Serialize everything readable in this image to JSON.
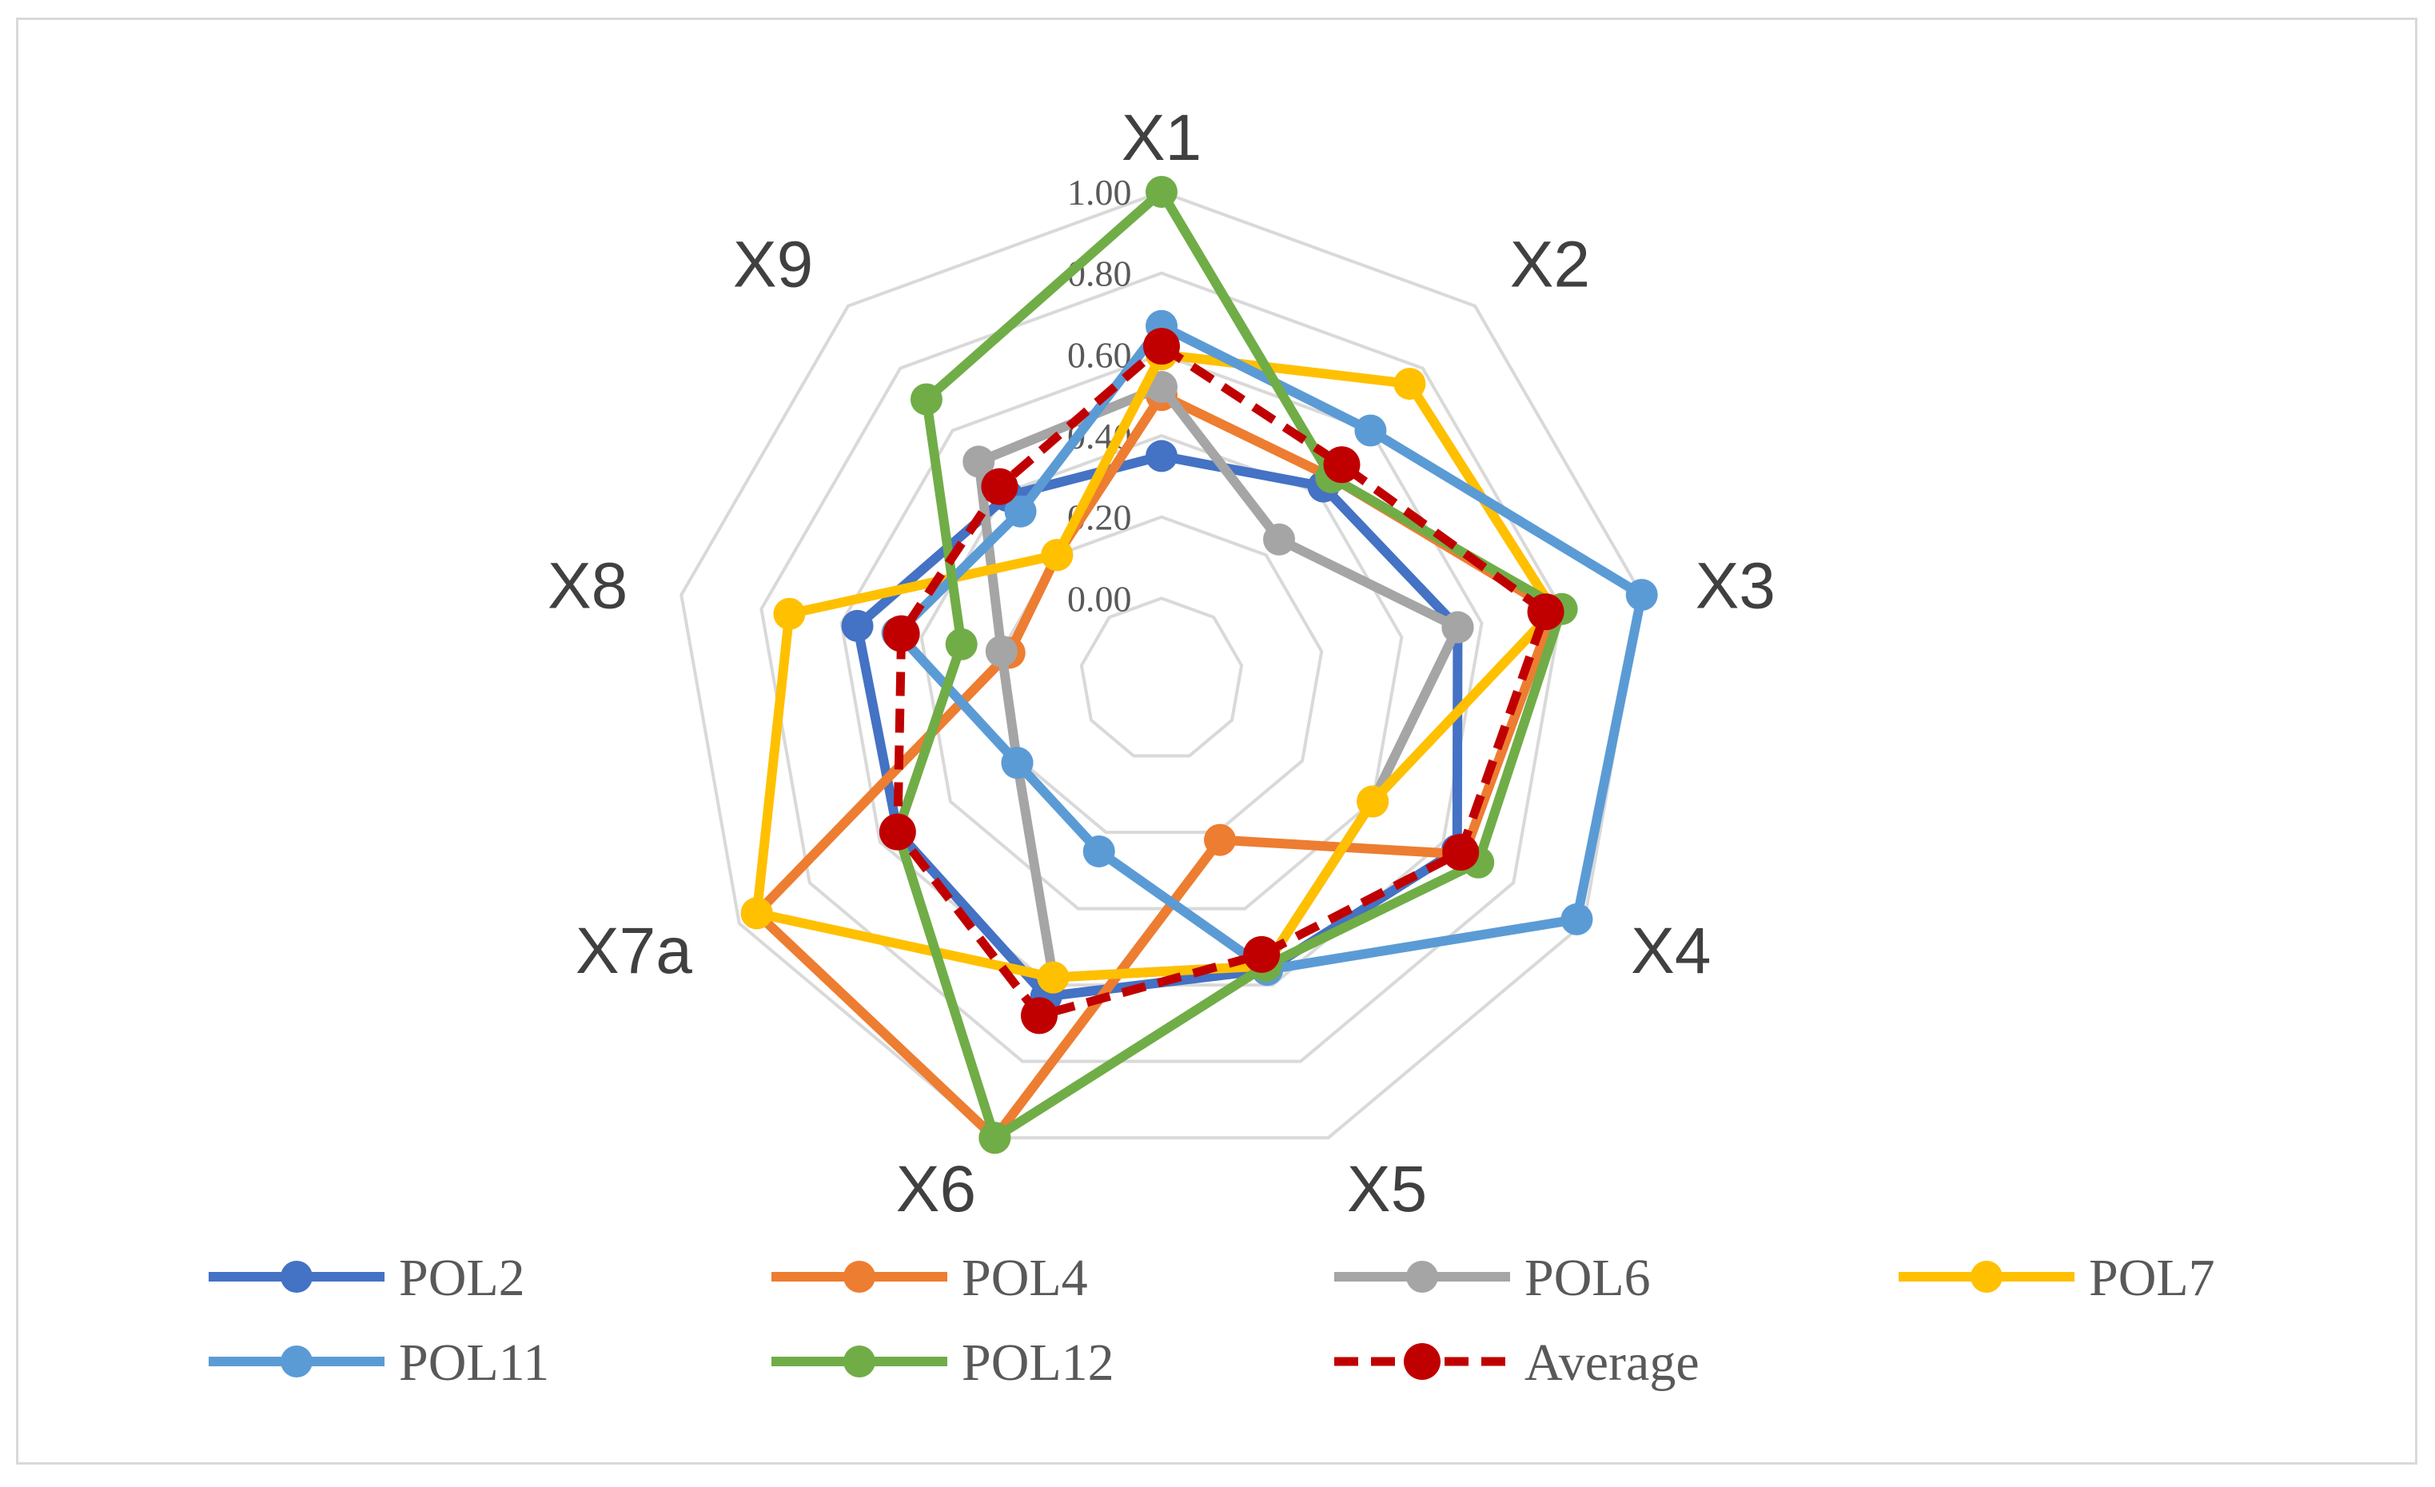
{
  "chart_data": {
    "type": "radar",
    "axes": [
      "X1",
      "X2",
      "X3",
      "X4",
      "X5",
      "X6",
      "X7a",
      "X8",
      "X9"
    ],
    "ticks": [
      "0.00",
      "0.20",
      "0.40",
      "0.60",
      "0.80",
      "1.00"
    ],
    "rmin": -0.2,
    "rmax": 1.0,
    "grid": true,
    "legend_position": "bottom",
    "series": [
      {
        "name": "POL2",
        "color": "#4472C4",
        "dashed": false,
        "values": [
          0.35,
          0.42,
          0.54,
          0.64,
          0.56,
          0.63,
          0.55,
          0.56,
          0.39
        ]
      },
      {
        "name": "POL4",
        "color": "#ED7D31",
        "dashed": false,
        "values": [
          0.5,
          0.45,
          0.78,
          0.66,
          0.22,
          1.0,
          0.95,
          0.18,
          0.2
        ]
      },
      {
        "name": "POL6",
        "color": "#A5A5A5",
        "dashed": false,
        "values": [
          0.52,
          0.25,
          0.54,
          0.4,
          0.55,
          0.58,
          0.21,
          0.2,
          0.5
        ]
      },
      {
        "name": "POL7",
        "color": "#FFC000",
        "dashed": false,
        "values": [
          0.6,
          0.75,
          0.78,
          0.4,
          0.55,
          0.58,
          0.95,
          0.73,
          0.2
        ]
      },
      {
        "name": "POL11",
        "color": "#5B9BD5",
        "dashed": false,
        "values": [
          0.67,
          0.6,
          1.0,
          0.98,
          0.56,
          0.25,
          0.21,
          0.46,
          0.34
        ]
      },
      {
        "name": "POL12",
        "color": "#70AD47",
        "dashed": false,
        "values": [
          1.0,
          0.45,
          0.8,
          0.7,
          0.55,
          1.0,
          0.55,
          0.3,
          0.7
        ]
      },
      {
        "name": "Average",
        "color": "#C00000",
        "dashed": true,
        "values": [
          0.62,
          0.49,
          0.76,
          0.65,
          0.52,
          0.68,
          0.55,
          0.45,
          0.42
        ]
      }
    ]
  }
}
